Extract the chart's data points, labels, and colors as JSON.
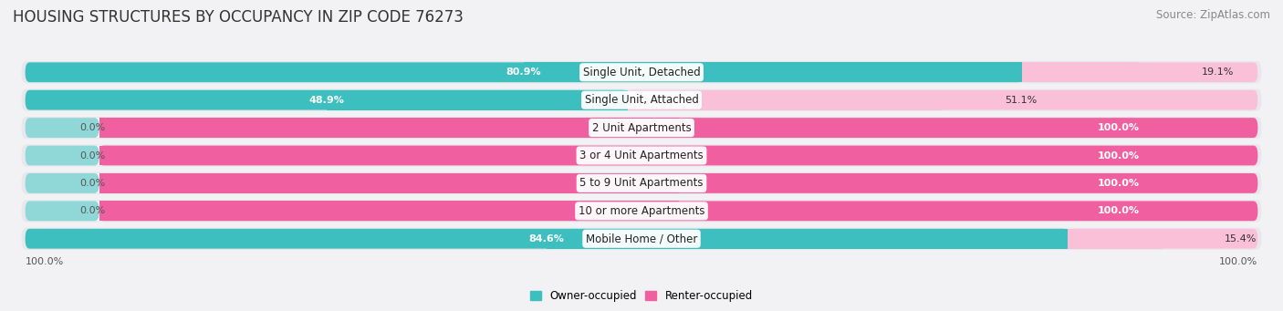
{
  "title": "HOUSING STRUCTURES BY OCCUPANCY IN ZIP CODE 76273",
  "source": "Source: ZipAtlas.com",
  "categories": [
    "Single Unit, Detached",
    "Single Unit, Attached",
    "2 Unit Apartments",
    "3 or 4 Unit Apartments",
    "5 to 9 Unit Apartments",
    "10 or more Apartments",
    "Mobile Home / Other"
  ],
  "owner_pct": [
    80.9,
    48.9,
    0.0,
    0.0,
    0.0,
    0.0,
    84.6
  ],
  "renter_pct": [
    19.1,
    51.1,
    100.0,
    100.0,
    100.0,
    100.0,
    15.4
  ],
  "owner_color": "#3DBFBF",
  "renter_color": "#F060A0",
  "owner_color_light": "#90D8D8",
  "renter_color_light": "#F9C0D8",
  "row_bg_color": "#e8e8ec",
  "row_inner_color": "#f8f8f8",
  "bg_color": "#f2f2f4",
  "title_fontsize": 12,
  "source_fontsize": 8.5,
  "label_fontsize": 8,
  "bar_height": 0.72,
  "xlim": [
    0,
    100
  ]
}
